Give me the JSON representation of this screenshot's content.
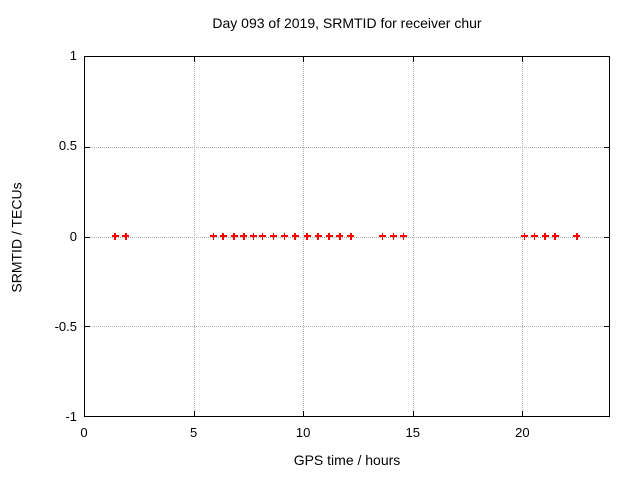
{
  "colors": {
    "background": "#ffffff",
    "axis": "#000000",
    "grid": "#b0b0b0",
    "text": "#000000",
    "marker": "#ff0000"
  },
  "chart_data": {
    "type": "scatter",
    "title": "Day 093 of 2019, SRMTID for receiver chur",
    "xlabel": "GPS time / hours",
    "ylabel": "SRMTID / TECUs",
    "xlim": [
      0,
      24
    ],
    "ylim": [
      -1,
      1
    ],
    "xticks": {
      "values": [
        0,
        5,
        10,
        15,
        20
      ],
      "labels": [
        "0",
        "5",
        "10",
        "15",
        "20"
      ]
    },
    "yticks": {
      "values": [
        1,
        0.5,
        0,
        -0.5,
        -1
      ],
      "labels": [
        "1",
        "0.5",
        "0",
        "-0.5",
        "-1"
      ]
    },
    "grid": true,
    "grid_style": "dotted",
    "legend": "none",
    "marker_style": "plus",
    "series": [
      {
        "name": "SRMTID",
        "color": "#ff0000",
        "x": [
          1.4,
          1.9,
          5.9,
          6.35,
          6.85,
          7.3,
          7.75,
          8.15,
          8.65,
          9.15,
          9.65,
          10.2,
          10.7,
          11.2,
          11.7,
          12.2,
          13.65,
          14.15,
          14.6,
          20.15,
          20.6,
          21.1,
          21.55,
          22.55
        ],
        "y": [
          0,
          0,
          0,
          0,
          0,
          0,
          0,
          0,
          0,
          0,
          0,
          0,
          0,
          0,
          0,
          0,
          0,
          0,
          0,
          0,
          0,
          0,
          0,
          0
        ]
      }
    ]
  }
}
